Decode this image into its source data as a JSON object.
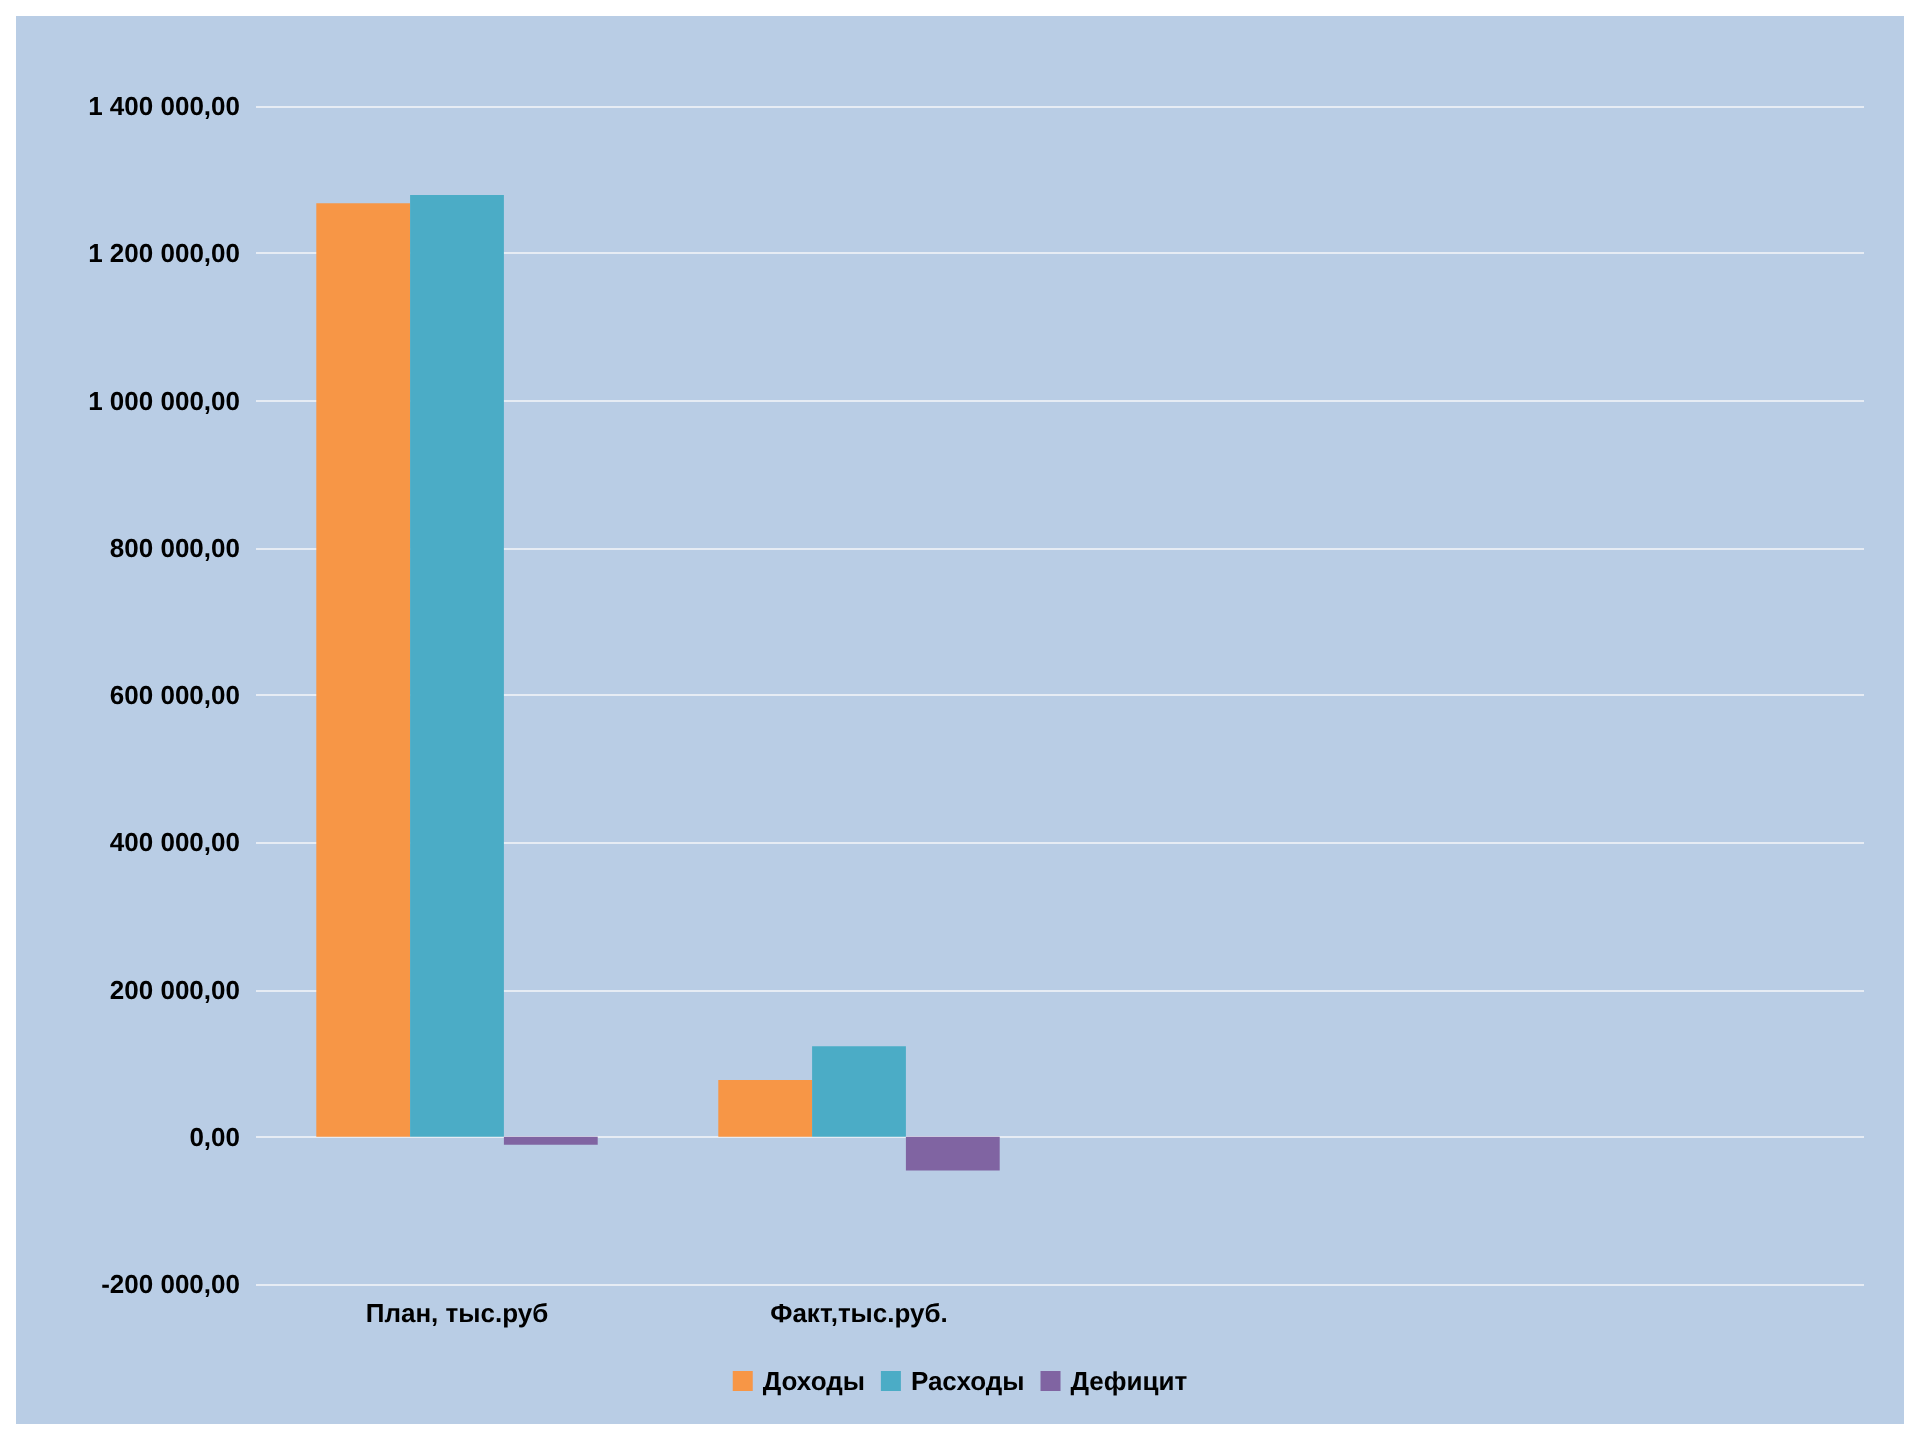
{
  "chart_data": {
    "type": "bar",
    "categories": [
      "План, тыс.руб",
      "Факт,тыс.руб.",
      null,
      null
    ],
    "series": [
      {
        "name": "Доходы",
        "color": "#f79646",
        "values": [
          1268000,
          77000,
          null,
          null
        ]
      },
      {
        "name": "Расходы",
        "color": "#4bacc6",
        "values": [
          1279000,
          123000,
          null,
          null
        ]
      },
      {
        "name": "Дефицит",
        "color": "#8064a2",
        "values": [
          -11000,
          -46000,
          null,
          null
        ]
      }
    ],
    "ylim": [
      -200000,
      1400000
    ],
    "yticks": [
      {
        "value": -200000,
        "label": "-200 000,00"
      },
      {
        "value": 0,
        "label": "0,00"
      },
      {
        "value": 200000,
        "label": "200 000,00"
      },
      {
        "value": 400000,
        "label": "400 000,00"
      },
      {
        "value": 600000,
        "label": "600 000,00"
      },
      {
        "value": 800000,
        "label": "800 000,00"
      },
      {
        "value": 1000000,
        "label": "1 000 000,00"
      },
      {
        "value": 1200000,
        "label": "1 200 000,00"
      },
      {
        "value": 1400000,
        "label": "1 400 000,00"
      }
    ],
    "grid": true,
    "legend": "bottom"
  }
}
